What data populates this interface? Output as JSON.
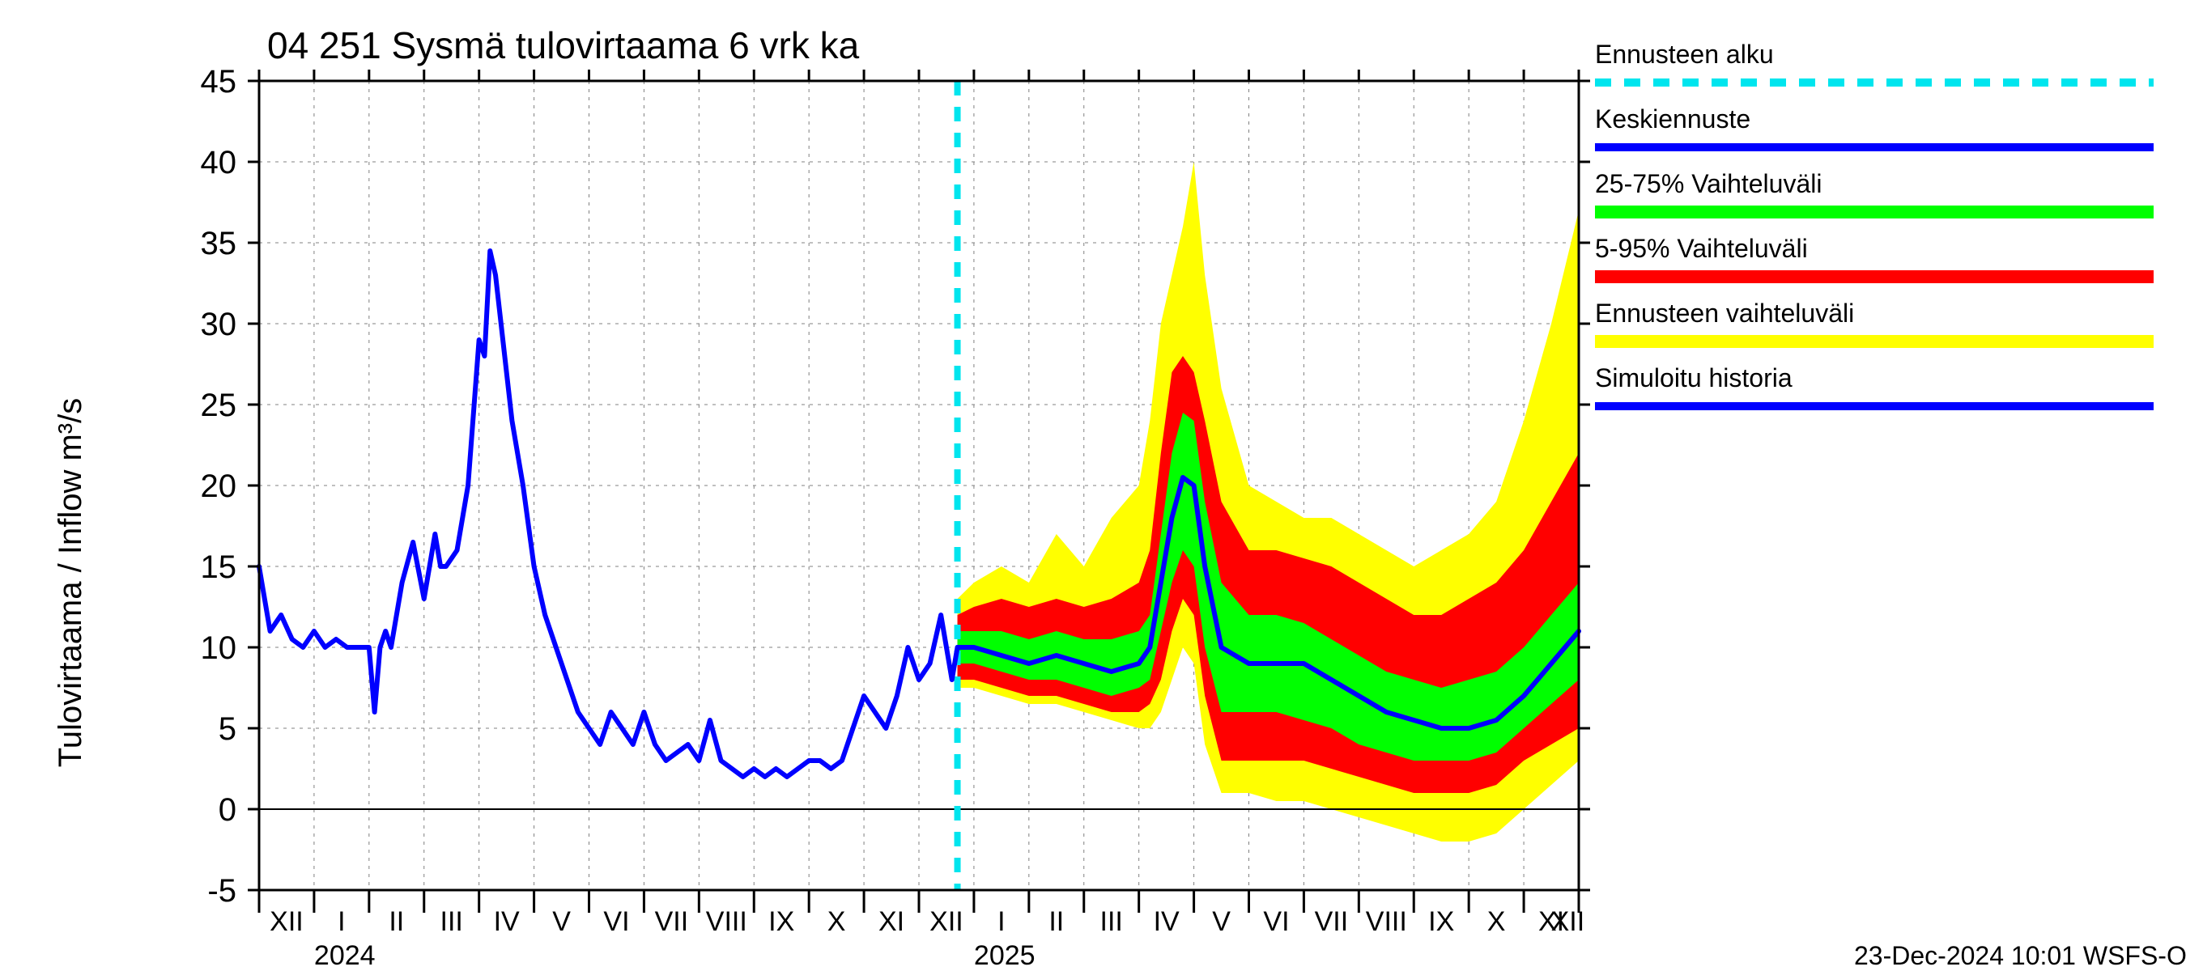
{
  "chart": {
    "type": "line_fanchart",
    "title": "04 251 Sysmä tulovirtaama 6 vrk ka",
    "ylabel": "Tulovirtaama / Inflow   m³/s",
    "footer": "23-Dec-2024 10:01 WSFS-O",
    "background_color": "#ffffff",
    "grid_color": "#808080",
    "axis_color": "#000000",
    "title_fontsize": 46,
    "label_fontsize": 40,
    "tick_fontsize_y": 40,
    "tick_fontsize_x": 34,
    "ylim": [
      -5,
      45
    ],
    "ytick_step": 5,
    "yticks": [
      -5,
      0,
      5,
      10,
      15,
      20,
      25,
      30,
      35,
      40,
      45
    ],
    "x_months": [
      "XII",
      "I",
      "II",
      "III",
      "IV",
      "V",
      "VI",
      "VII",
      "VIII",
      "IX",
      "X",
      "XI",
      "XII",
      "I",
      "II",
      "III",
      "IV",
      "V",
      "VI",
      "VII",
      "VIII",
      "IX",
      "X",
      "XI",
      "XII"
    ],
    "year_labels": [
      {
        "label": "2024",
        "at_month_index": 1
      },
      {
        "label": "2025",
        "at_month_index": 13
      }
    ],
    "forecast_start_month_index": 12.7,
    "colors": {
      "history_line": "#0000ff",
      "keskiennuste": "#0000ff",
      "forecast_start": "#00e5ee",
      "band_25_75": "#00ff00",
      "band_5_95": "#ff0000",
      "band_full": "#ffff00"
    },
    "line_widths": {
      "history": 6,
      "keskiennuste": 6,
      "forecast_start": 8,
      "legend_swatch": 10
    },
    "legend": {
      "items": [
        {
          "label": "Ennusteen alku",
          "style": "dash",
          "color": "#00e5ee"
        },
        {
          "label": "Keskiennuste",
          "style": "line",
          "color": "#0000ff"
        },
        {
          "label": "25-75% Vaihteluväli",
          "style": "band",
          "color": "#00ff00"
        },
        {
          "label": "5-95% Vaihteluväli",
          "style": "band",
          "color": "#ff0000"
        },
        {
          "label": "Ennusteen vaihteluväli",
          "style": "band",
          "color": "#ffff00"
        },
        {
          "label": "Simuloitu historia",
          "style": "line",
          "color": "#0000ff"
        }
      ]
    },
    "history_series": {
      "x": [
        0,
        0.2,
        0.4,
        0.6,
        0.8,
        1,
        1.2,
        1.4,
        1.6,
        1.8,
        2,
        2.1,
        2.2,
        2.3,
        2.4,
        2.6,
        2.8,
        3,
        3.1,
        3.2,
        3.3,
        3.4,
        3.6,
        3.8,
        4,
        4.1,
        4.2,
        4.3,
        4.4,
        4.5,
        4.6,
        4.8,
        5,
        5.2,
        5.4,
        5.6,
        5.8,
        6,
        6.2,
        6.4,
        6.6,
        6.8,
        7,
        7.2,
        7.4,
        7.6,
        7.8,
        8,
        8.2,
        8.4,
        8.6,
        8.8,
        9,
        9.2,
        9.4,
        9.6,
        9.8,
        10,
        10.2,
        10.4,
        10.6,
        10.8,
        11,
        11.2,
        11.4,
        11.6,
        11.8,
        12,
        12.2,
        12.4,
        12.6,
        12.7
      ],
      "y": [
        15,
        11,
        12,
        10.5,
        10,
        11,
        10,
        10.5,
        10,
        10,
        10,
        6,
        10,
        11,
        10,
        14,
        16.5,
        13,
        15,
        17,
        15,
        15,
        16,
        20,
        29,
        28,
        34.5,
        33,
        30,
        27,
        24,
        20,
        15,
        12,
        10,
        8,
        6,
        5,
        4,
        6,
        5,
        4,
        6,
        4,
        3,
        3.5,
        4,
        3,
        5.5,
        3,
        2.5,
        2,
        2.5,
        2,
        2.5,
        2,
        2.5,
        3,
        3,
        2.5,
        3,
        5,
        7,
        6,
        5,
        7,
        10,
        8,
        9,
        12,
        8,
        10
      ]
    },
    "forecast_mean": {
      "x": [
        12.7,
        13,
        13.5,
        14,
        14.5,
        15,
        15.5,
        16,
        16.2,
        16.4,
        16.6,
        16.8,
        17,
        17.2,
        17.5,
        18,
        18.5,
        19,
        19.5,
        20,
        20.5,
        21,
        21.5,
        22,
        22.5,
        23,
        23.5,
        24
      ],
      "y": [
        10,
        10,
        9.5,
        9,
        9.5,
        9,
        8.5,
        9,
        10,
        14,
        18,
        20.5,
        20,
        15,
        10,
        9,
        9,
        9,
        8,
        7,
        6,
        5.5,
        5,
        5,
        5.5,
        7,
        9,
        11
      ]
    },
    "band_25_75": {
      "x": [
        12.7,
        13,
        13.5,
        14,
        14.5,
        15,
        15.5,
        16,
        16.2,
        16.4,
        16.6,
        16.8,
        17,
        17.2,
        17.5,
        18,
        18.5,
        19,
        19.5,
        20,
        20.5,
        21,
        21.5,
        22,
        22.5,
        23,
        23.5,
        24
      ],
      "lo": [
        9,
        9,
        8.5,
        8,
        8,
        7.5,
        7,
        7.5,
        8,
        11,
        14,
        16,
        15,
        10,
        6,
        6,
        6,
        5.5,
        5,
        4,
        3.5,
        3,
        3,
        3,
        3.5,
        5,
        6.5,
        8
      ],
      "hi": [
        11,
        11,
        11,
        10.5,
        11,
        10.5,
        10.5,
        11,
        12,
        17,
        22,
        24.5,
        24,
        19,
        14,
        12,
        12,
        11.5,
        10.5,
        9.5,
        8.5,
        8,
        7.5,
        8,
        8.5,
        10,
        12,
        14
      ]
    },
    "band_5_95": {
      "x": [
        12.7,
        13,
        13.5,
        14,
        14.5,
        15,
        15.5,
        16,
        16.2,
        16.4,
        16.6,
        16.8,
        17,
        17.2,
        17.5,
        18,
        18.5,
        19,
        19.5,
        20,
        20.5,
        21,
        21.5,
        22,
        22.5,
        23,
        23.5,
        24
      ],
      "lo": [
        8,
        8,
        7.5,
        7,
        7,
        6.5,
        6,
        6,
        6.5,
        8,
        11,
        13,
        12,
        7,
        3,
        3,
        3,
        3,
        2.5,
        2,
        1.5,
        1,
        1,
        1,
        1.5,
        3,
        4,
        5
      ],
      "hi": [
        12,
        12.5,
        13,
        12.5,
        13,
        12.5,
        13,
        14,
        16,
        22,
        27,
        28,
        27,
        24,
        19,
        16,
        16,
        15.5,
        15,
        14,
        13,
        12,
        12,
        13,
        14,
        16,
        19,
        22
      ]
    },
    "band_full": {
      "x": [
        12.7,
        13,
        13.5,
        14,
        14.5,
        15,
        15.5,
        16,
        16.2,
        16.4,
        16.6,
        16.8,
        17,
        17.2,
        17.5,
        18,
        18.5,
        19,
        19.5,
        20,
        20.5,
        21,
        21.5,
        22,
        22.5,
        23,
        23.5,
        24
      ],
      "lo": [
        7.5,
        7.5,
        7,
        6.5,
        6.5,
        6,
        5.5,
        5,
        5,
        6,
        8,
        10,
        9,
        4,
        1,
        1,
        0.5,
        0.5,
        0,
        -0.5,
        -1,
        -1.5,
        -2,
        -2,
        -1.5,
        0,
        1.5,
        3
      ],
      "hi": [
        13,
        14,
        15,
        14,
        17,
        15,
        18,
        20,
        24,
        30,
        33,
        36,
        40,
        33,
        26,
        20,
        19,
        18,
        18,
        17,
        16,
        15,
        16,
        17,
        19,
        24,
        30,
        37
      ]
    }
  }
}
